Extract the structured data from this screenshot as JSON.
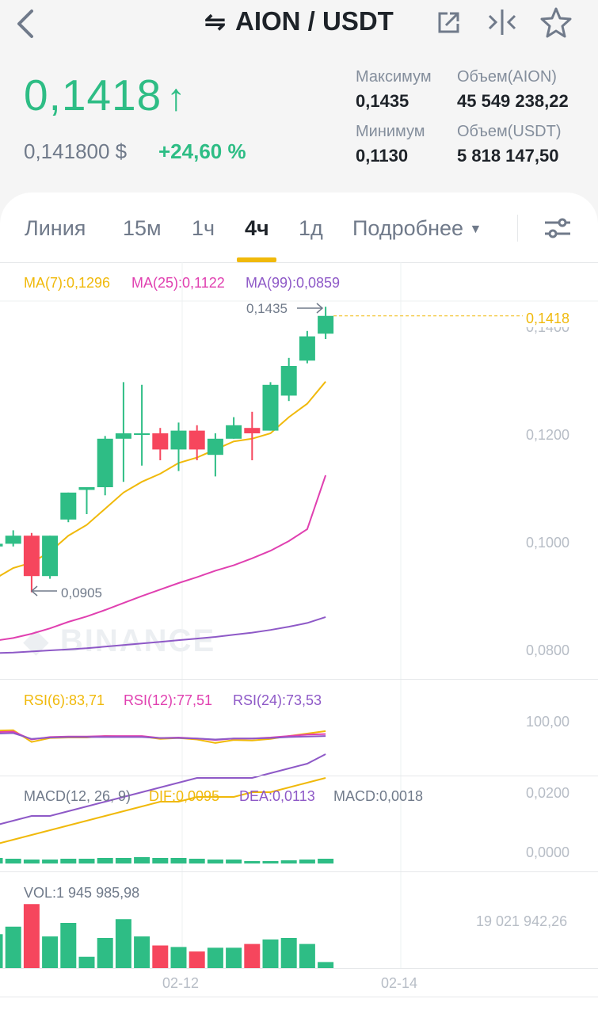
{
  "header": {
    "back_icon": "chevron-left-icon",
    "swap_icon": "swap-arrows-icon",
    "title": "AION / USDT",
    "share_icon": "share-external-icon",
    "compare_icon": "split-arrows-icon",
    "favorite_icon": "star-icon"
  },
  "ticker": {
    "last_price": "0,1418",
    "usd_price": "0,141800 $",
    "change": "+24,60 %",
    "up_arrow": "↑",
    "stats": {
      "high_label": "Максимум",
      "high_value": "0,1435",
      "low_label": "Минимум",
      "low_value": "0,1130",
      "vol_base_label": "Объем(AION)",
      "vol_base_value": "45 549 238,22",
      "vol_quote_label": "Объем(USDT)",
      "vol_quote_value": "5 818 147,50"
    }
  },
  "tabs": [
    {
      "label": "Линия"
    },
    {
      "label": "15м"
    },
    {
      "label": "1ч"
    },
    {
      "label": "4ч",
      "active": true
    },
    {
      "label": "1д"
    },
    {
      "label": "Подробнее"
    }
  ],
  "chart": {
    "ma7": "MA(7):0,1296",
    "ma25": "MA(25):0,1122",
    "ma99": "MA(99):0,0859",
    "high_marker": "0,1435",
    "low_marker": "0,0905",
    "current_price": "0,1418",
    "price_axis": [
      "0,1400",
      "0,1200",
      "0,1000",
      "0,0800"
    ],
    "watermark": "BINANCE",
    "rsi6": "RSI(6):83,71",
    "rsi12": "RSI(12):77,51",
    "rsi24": "RSI(24):73,53",
    "rsi_axis": "100,00",
    "macd": "MACD(12, 26, 9)",
    "dif": "DIF:0,0095",
    "dea": "DEA:0,0113",
    "macd_val": "MACD:0,0018",
    "macd_axis": [
      "0,0200",
      "0,0000"
    ],
    "vol": "VOL:1 945 985,98",
    "vol_axis": "19 021 942,26",
    "dates": [
      "02-12",
      "02-14"
    ],
    "colors": {
      "up": "#2ebd85",
      "down": "#f6465d",
      "ma7": "#f0b90b",
      "ma25": "#e040b0",
      "ma99": "#8e59c7"
    }
  },
  "chart_data": {
    "type": "candlestick",
    "interval": "4ч",
    "candles": [
      {
        "o": 0.099,
        "h": 0.1,
        "l": 0.0985,
        "c": 0.0995
      },
      {
        "o": 0.0995,
        "h": 0.102,
        "l": 0.099,
        "c": 0.101
      },
      {
        "o": 0.101,
        "h": 0.1015,
        "l": 0.0905,
        "c": 0.0935
      },
      {
        "o": 0.0935,
        "h": 0.101,
        "l": 0.093,
        "c": 0.101
      },
      {
        "o": 0.104,
        "h": 0.109,
        "l": 0.1035,
        "c": 0.109
      },
      {
        "o": 0.1095,
        "h": 0.11,
        "l": 0.105,
        "c": 0.11
      },
      {
        "o": 0.11,
        "h": 0.1195,
        "l": 0.1085,
        "c": 0.119
      },
      {
        "o": 0.119,
        "h": 0.1295,
        "l": 0.111,
        "c": 0.12
      },
      {
        "o": 0.12,
        "h": 0.129,
        "l": 0.114,
        "c": 0.12
      },
      {
        "o": 0.12,
        "h": 0.121,
        "l": 0.115,
        "c": 0.117
      },
      {
        "o": 0.117,
        "h": 0.122,
        "l": 0.113,
        "c": 0.1205
      },
      {
        "o": 0.1205,
        "h": 0.1215,
        "l": 0.115,
        "c": 0.117
      },
      {
        "o": 0.116,
        "h": 0.12,
        "l": 0.112,
        "c": 0.119
      },
      {
        "o": 0.119,
        "h": 0.123,
        "l": 0.119,
        "c": 0.1215
      },
      {
        "o": 0.121,
        "h": 0.124,
        "l": 0.115,
        "c": 0.12
      },
      {
        "o": 0.1205,
        "h": 0.1295,
        "l": 0.1205,
        "c": 0.129
      },
      {
        "o": 0.127,
        "h": 0.134,
        "l": 0.126,
        "c": 0.1325
      },
      {
        "o": 0.1335,
        "h": 0.139,
        "l": 0.133,
        "c": 0.138
      },
      {
        "o": 0.1385,
        "h": 0.1435,
        "l": 0.1375,
        "c": 0.1418
      }
    ],
    "ma7": [
      0.093,
      0.095,
      0.096,
      0.098,
      0.101,
      0.103,
      0.106,
      0.109,
      0.111,
      0.1125,
      0.1145,
      0.1155,
      0.117,
      0.1185,
      0.119,
      0.12,
      0.123,
      0.1255,
      0.1296
    ],
    "ma25": [
      0.0815,
      0.082,
      0.0828,
      0.0838,
      0.085,
      0.086,
      0.0872,
      0.0885,
      0.0898,
      0.091,
      0.0922,
      0.0933,
      0.0945,
      0.0955,
      0.0968,
      0.0982,
      0.1,
      0.1022,
      0.1122
    ],
    "ma99": [
      0.0792,
      0.0793,
      0.0795,
      0.0797,
      0.0799,
      0.0801,
      0.0804,
      0.0807,
      0.081,
      0.0813,
      0.0816,
      0.0819,
      0.0822,
      0.0826,
      0.083,
      0.0835,
      0.0841,
      0.0848,
      0.0859
    ],
    "volume": [
      0.45,
      0.55,
      0.85,
      0.42,
      0.6,
      0.15,
      0.4,
      0.65,
      0.42,
      0.3,
      0.28,
      0.22,
      0.27,
      0.27,
      0.32,
      0.38,
      0.4,
      0.32,
      0.08
    ],
    "y_range": [
      0.077,
      0.143
    ]
  }
}
